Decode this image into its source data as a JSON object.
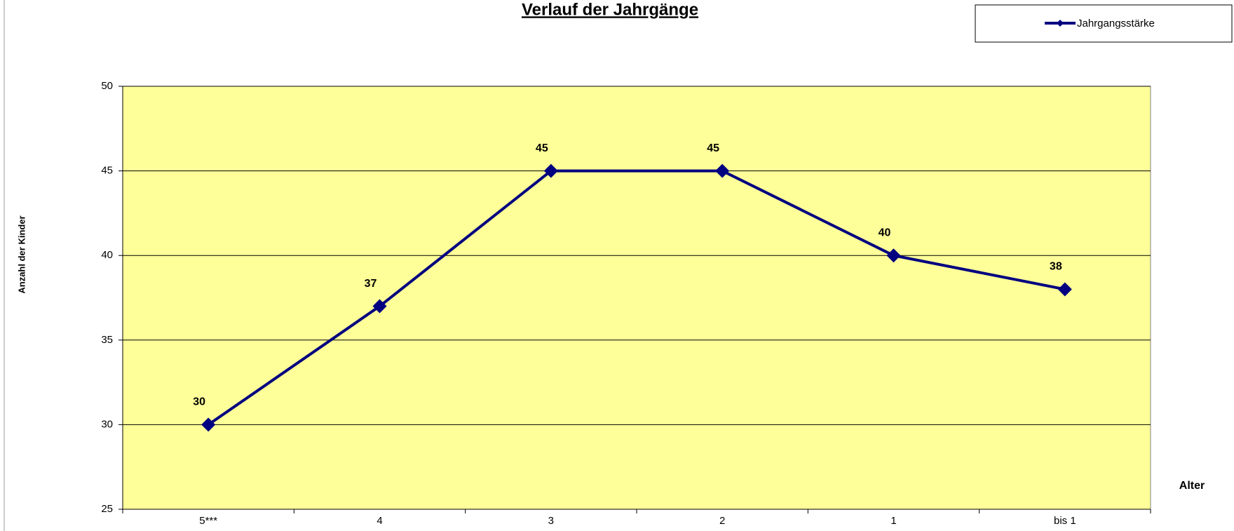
{
  "chart_data": {
    "type": "line",
    "title": "Verlauf der Jahrgänge",
    "categories": [
      "5***",
      "4",
      "3",
      "2",
      "1",
      "bis 1"
    ],
    "series": [
      {
        "name": "Jahrgangsstärke",
        "color": "#000080",
        "values": [
          30,
          37,
          45,
          45,
          40,
          38
        ]
      }
    ],
    "ylim": [
      25,
      50
    ],
    "yticks": [
      25,
      30,
      35,
      40,
      45,
      50
    ],
    "grid": true,
    "y_label": "Anzahl der Kinder",
    "x_label": "Alter",
    "plot_background": "#ffff99",
    "legend": "top-right"
  }
}
